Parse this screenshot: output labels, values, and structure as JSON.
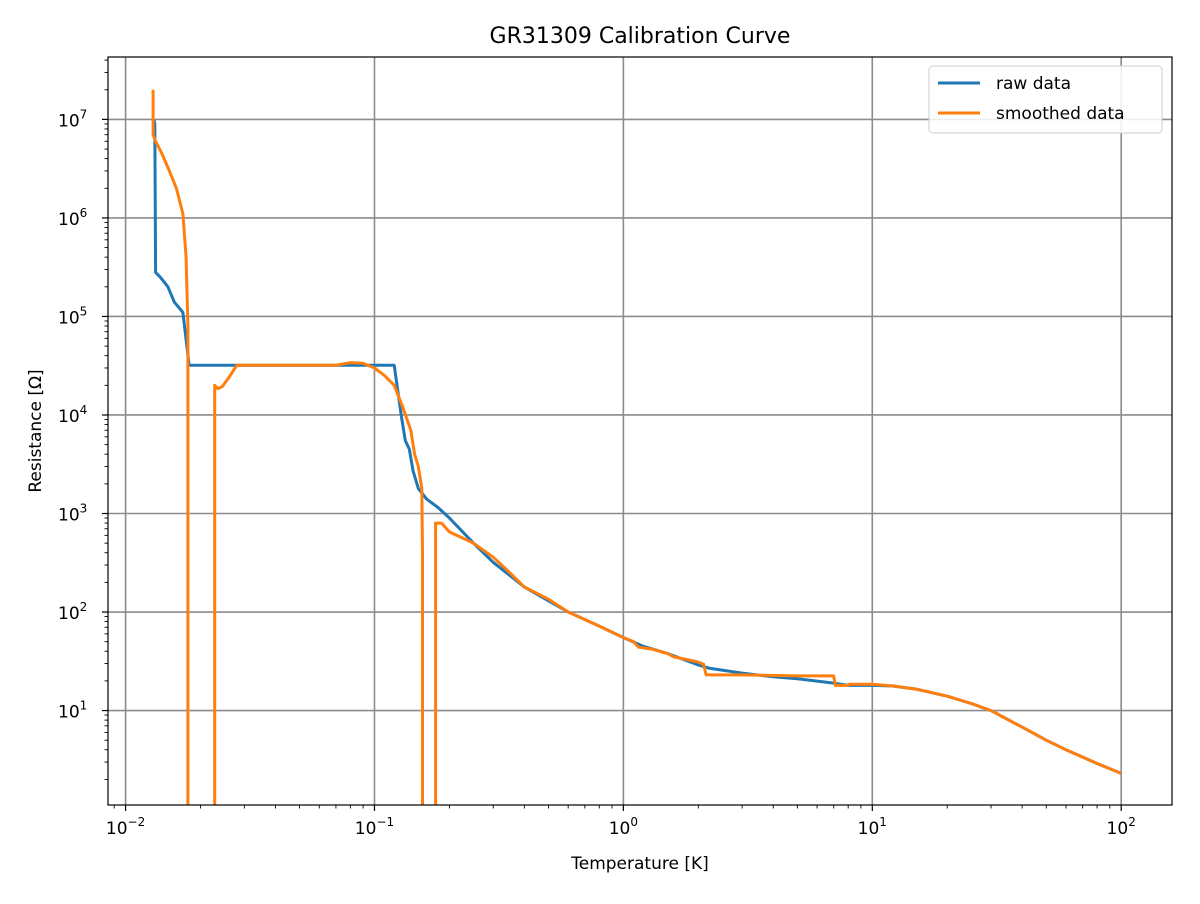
{
  "chart_data": {
    "type": "line",
    "title": "GR31309 Calibration Curve",
    "xlabel": "Temperature [K]",
    "ylabel": "Resistance [Ω]",
    "xscale": "log",
    "yscale": "log",
    "xlim": [
      0.0085,
      160
    ],
    "ylim": [
      1.1,
      43000000
    ],
    "grid": true,
    "legend_position": "upper right",
    "x_ticks": [
      {
        "value": 0.01,
        "base": "10",
        "exp": "−2"
      },
      {
        "value": 0.1,
        "base": "10",
        "exp": "−1"
      },
      {
        "value": 1,
        "base": "10",
        "exp": "0"
      },
      {
        "value": 10,
        "base": "10",
        "exp": "1"
      },
      {
        "value": 100,
        "base": "10",
        "exp": "2"
      }
    ],
    "y_ticks": [
      {
        "value": 10,
        "base": "10",
        "exp": "1"
      },
      {
        "value": 100,
        "base": "10",
        "exp": "2"
      },
      {
        "value": 1000,
        "base": "10",
        "exp": "3"
      },
      {
        "value": 10000,
        "base": "10",
        "exp": "4"
      },
      {
        "value": 100000,
        "base": "10",
        "exp": "5"
      },
      {
        "value": 1000000,
        "base": "10",
        "exp": "6"
      },
      {
        "value": 10000000,
        "base": "10",
        "exp": "7"
      }
    ],
    "series": [
      {
        "name": "raw data",
        "color": "#1f77b4",
        "points": [
          [
            0.013,
            10000000
          ],
          [
            0.0131,
            9000000
          ],
          [
            0.0132,
            280000
          ],
          [
            0.0138,
            250000
          ],
          [
            0.0148,
            200000
          ],
          [
            0.0157,
            140000
          ],
          [
            0.017,
            110000
          ],
          [
            0.018,
            32000
          ],
          [
            0.03,
            32000
          ],
          [
            0.06,
            32000
          ],
          [
            0.1,
            32000
          ],
          [
            0.12,
            32000
          ],
          [
            0.128,
            10000
          ],
          [
            0.133,
            5500
          ],
          [
            0.138,
            4500
          ],
          [
            0.143,
            2700
          ],
          [
            0.15,
            1800
          ],
          [
            0.162,
            1400
          ],
          [
            0.18,
            1150
          ],
          [
            0.2,
            900
          ],
          [
            0.25,
            500
          ],
          [
            0.3,
            320
          ],
          [
            0.4,
            180
          ],
          [
            0.5,
            130
          ],
          [
            0.6,
            100
          ],
          [
            0.8,
            72
          ],
          [
            1.0,
            55
          ],
          [
            1.2,
            45
          ],
          [
            1.5,
            38
          ],
          [
            2.0,
            29
          ],
          [
            2.2,
            27
          ],
          [
            3.0,
            24
          ],
          [
            4.0,
            22
          ],
          [
            5.0,
            21
          ],
          [
            7.0,
            19
          ],
          [
            8.0,
            18
          ],
          [
            10,
            18
          ],
          [
            12,
            17.8
          ],
          [
            15,
            16.5
          ],
          [
            20,
            14
          ],
          [
            25,
            11.8
          ],
          [
            30,
            10
          ],
          [
            40,
            6.8
          ],
          [
            50,
            5
          ],
          [
            60,
            4
          ],
          [
            80,
            2.9
          ],
          [
            100,
            2.3
          ]
        ]
      },
      {
        "name": "smoothed data",
        "color": "#ff7f0e",
        "points": [
          [
            0.0129,
            20000000
          ],
          [
            0.0129,
            7000000
          ],
          [
            0.0132,
            6000000
          ],
          [
            0.014,
            4500000
          ],
          [
            0.015,
            3000000
          ],
          [
            0.016,
            2000000
          ],
          [
            0.017,
            1100000
          ],
          [
            0.0175,
            400000
          ],
          [
            0.0178,
            80000
          ],
          [
            0.0178,
            1.0
          ],
          null,
          [
            0.0228,
            1.0
          ],
          [
            0.0228,
            20000
          ],
          [
            0.0235,
            18500
          ],
          [
            0.0245,
            19500
          ],
          [
            0.026,
            24000
          ],
          [
            0.028,
            32000
          ],
          [
            0.04,
            32000
          ],
          [
            0.06,
            32000
          ],
          [
            0.07,
            32000
          ],
          [
            0.08,
            34000
          ],
          [
            0.09,
            33500
          ],
          [
            0.1,
            30000
          ],
          [
            0.11,
            25000
          ],
          [
            0.12,
            20000
          ],
          [
            0.13,
            12000
          ],
          [
            0.14,
            7000
          ],
          [
            0.145,
            4000
          ],
          [
            0.15,
            3000
          ],
          [
            0.155,
            1800
          ],
          [
            0.156,
            400
          ],
          [
            0.156,
            1.0
          ],
          null,
          [
            0.176,
            1.0
          ],
          [
            0.176,
            800
          ],
          [
            0.186,
            800
          ],
          [
            0.2,
            650
          ],
          [
            0.25,
            500
          ],
          [
            0.3,
            360
          ],
          [
            0.35,
            250
          ],
          [
            0.4,
            180
          ],
          [
            0.5,
            135
          ],
          [
            0.6,
            100
          ],
          [
            0.8,
            72
          ],
          [
            1.0,
            55
          ],
          [
            1.1,
            50
          ],
          [
            1.15,
            44
          ],
          [
            1.3,
            42
          ],
          [
            1.5,
            38
          ],
          [
            1.6,
            35
          ],
          [
            1.8,
            33
          ],
          [
            2.0,
            31
          ],
          [
            2.1,
            29.5
          ],
          [
            2.15,
            23
          ],
          [
            3.0,
            23
          ],
          [
            5.0,
            22.5
          ],
          [
            7.0,
            22.5
          ],
          [
            7.1,
            18
          ],
          [
            8.0,
            18
          ],
          [
            8.1,
            18.5
          ],
          [
            10,
            18.5
          ],
          [
            12,
            17.8
          ],
          [
            15,
            16.5
          ],
          [
            20,
            14
          ],
          [
            25,
            11.8
          ],
          [
            30,
            10
          ],
          [
            40,
            6.8
          ],
          [
            50,
            5
          ],
          [
            60,
            4
          ],
          [
            80,
            2.9
          ],
          [
            100,
            2.3
          ]
        ]
      }
    ]
  }
}
